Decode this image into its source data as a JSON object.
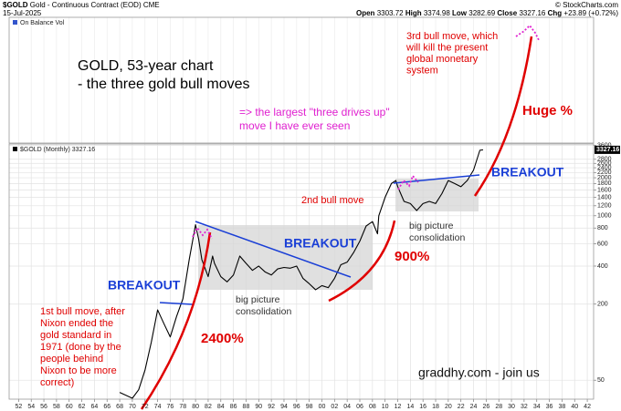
{
  "header": {
    "symbol": "$GOLD",
    "name": "Gold - Continuous Contract (EOD) CME",
    "date": "15-Jul-2025",
    "copyright": "© StockCharts.com",
    "open_label": "Open",
    "open": 3303.72,
    "high_label": "High",
    "high": 3374.98,
    "low_label": "Low",
    "low": 3282.69,
    "close_label": "Close",
    "close": 3327.16,
    "chg_label": "Chg",
    "chg": "+23.89 (+0.72%)"
  },
  "chart_data": {
    "type": "line",
    "indicator_label": "On Balance Vol",
    "series_label": "$GOLD (Monthly) 3327.16",
    "last_value": 3327.16,
    "log_scale": true,
    "grid": true,
    "x": [
      1968,
      1970,
      1971,
      1972,
      1973,
      1974,
      1975,
      1976,
      1977,
      1978,
      1979,
      1980,
      1980.5,
      1981,
      1982,
      1982.7,
      1983,
      1984,
      1985,
      1986,
      1987,
      1988,
      1989,
      1990,
      1991,
      1992,
      1993,
      1994,
      1995,
      1996,
      1997,
      1998,
      1999,
      2000,
      2001,
      2002,
      2003,
      2004,
      2005,
      2006,
      2007,
      2008,
      2008.8,
      2009,
      2010,
      2011,
      2011.7,
      2012,
      2013,
      2014,
      2015,
      2016,
      2017,
      2018,
      2019,
      2020,
      2021,
      2022,
      2023,
      2024,
      2025,
      2025.5
    ],
    "series": [
      {
        "color": "#000000",
        "values": [
          40,
          36,
          42,
          60,
          100,
          180,
          140,
          110,
          160,
          220,
          450,
          850,
          650,
          450,
          330,
          480,
          420,
          330,
          300,
          340,
          480,
          420,
          370,
          400,
          360,
          340,
          380,
          390,
          385,
          400,
          320,
          290,
          260,
          280,
          270,
          320,
          410,
          430,
          510,
          630,
          830,
          900,
          720,
          1000,
          1400,
          1800,
          1900,
          1700,
          1300,
          1250,
          1100,
          1250,
          1300,
          1250,
          1500,
          1900,
          1800,
          1700,
          1900,
          2300,
          3300,
          3327.16
        ]
      }
    ],
    "xlim": [
      1950.5,
      2043
    ],
    "ylim": [
      35.4,
      3700
    ],
    "xticks": [
      {
        "value": 1952,
        "label": "52"
      },
      {
        "value": 1954,
        "label": "54"
      },
      {
        "value": 1956,
        "label": "56"
      },
      {
        "value": 1958,
        "label": "58"
      },
      {
        "value": 1960,
        "label": "60"
      },
      {
        "value": 1962,
        "label": "62"
      },
      {
        "value": 1964,
        "label": "64"
      },
      {
        "value": 1966,
        "label": "66"
      },
      {
        "value": 1968,
        "label": "68"
      },
      {
        "value": 1970,
        "label": "70"
      },
      {
        "value": 1972,
        "label": "72"
      },
      {
        "value": 1974,
        "label": "74"
      },
      {
        "value": 1976,
        "label": "76"
      },
      {
        "value": 1978,
        "label": "78"
      },
      {
        "value": 1980,
        "label": "80"
      },
      {
        "value": 1982,
        "label": "82"
      },
      {
        "value": 1984,
        "label": "84"
      },
      {
        "value": 1986,
        "label": "86"
      },
      {
        "value": 1988,
        "label": "88"
      },
      {
        "value": 1990,
        "label": "90"
      },
      {
        "value": 1992,
        "label": "92"
      },
      {
        "value": 1994,
        "label": "94"
      },
      {
        "value": 1996,
        "label": "96"
      },
      {
        "value": 1998,
        "label": "98"
      },
      {
        "value": 2000,
        "label": "00"
      },
      {
        "value": 2002,
        "label": "02"
      },
      {
        "value": 2004,
        "label": "04"
      },
      {
        "value": 2006,
        "label": "06"
      },
      {
        "value": 2008,
        "label": "08"
      },
      {
        "value": 2010,
        "label": "10"
      },
      {
        "value": 2012,
        "label": "12"
      },
      {
        "value": 2014,
        "label": "14"
      },
      {
        "value": 2016,
        "label": "16"
      },
      {
        "value": 2018,
        "label": "18"
      },
      {
        "value": 2020,
        "label": "20"
      },
      {
        "value": 2022,
        "label": "22"
      },
      {
        "value": 2024,
        "label": "24"
      },
      {
        "value": 2026,
        "label": "26"
      },
      {
        "value": 2028,
        "label": "28"
      },
      {
        "value": 2030,
        "label": "30"
      },
      {
        "value": 2032,
        "label": "32"
      },
      {
        "value": 2034,
        "label": "34"
      },
      {
        "value": 2036,
        "label": "36"
      },
      {
        "value": 2038,
        "label": "38"
      },
      {
        "value": 2040,
        "label": "40"
      },
      {
        "value": 2042,
        "label": "42"
      }
    ],
    "yticks": [
      3600,
      2800,
      2600,
      2400,
      2200,
      2000,
      1800,
      1600,
      1400,
      1200,
      1000,
      800,
      600,
      400,
      200,
      50
    ],
    "annotations": [
      [
        "GOLD, 53-year chart",
        "- the three gold bull moves"
      ],
      [
        "=> the largest \"three drives up\"",
        "move I have ever seen"
      ],
      [
        "3rd bull move, which",
        "will kill the present",
        "global monetary",
        "system"
      ],
      [
        "Huge %"
      ],
      [
        "BREAKOUT"
      ],
      [
        "2nd bull move"
      ],
      [
        "big picture",
        "consolidation"
      ],
      [
        "BREAKOUT"
      ],
      [
        "900%"
      ],
      [
        "BREAKOUT"
      ],
      [
        "big picture",
        "consolidation"
      ],
      [
        "1st bull move, after",
        "Nixon ended the",
        "gold standard in",
        "1971 (done by the",
        "people behind",
        "Nixon to be more",
        "correct)"
      ],
      [
        "2400%"
      ],
      [
        "graddhy.com - join us"
      ]
    ]
  }
}
